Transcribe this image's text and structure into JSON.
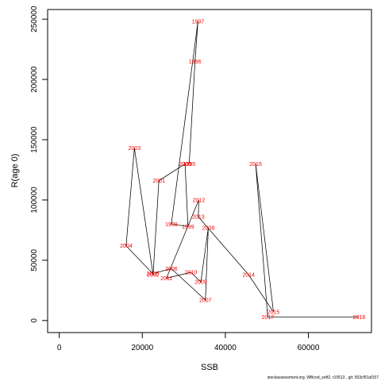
{
  "chart_data": {
    "type": "line",
    "xlabel": "SSB",
    "ylabel": "R(age 0)",
    "xlim": [
      -2800,
      75200
    ],
    "ylim": [
      -10000,
      258000
    ],
    "xticks": [
      0,
      20000,
      40000,
      60000
    ],
    "yticks": [
      0,
      50000,
      100000,
      150000,
      200000,
      250000
    ],
    "line_color": "#000000",
    "label_color": "#ff0000",
    "grid": false,
    "points": [
      {
        "label": "1995",
        "x": 31300,
        "y": 130000
      },
      {
        "label": "1996",
        "x": 32700,
        "y": 215000
      },
      {
        "label": "1997",
        "x": 33400,
        "y": 248000
      },
      {
        "label": "1998",
        "x": 27000,
        "y": 80000
      },
      {
        "label": "1999",
        "x": 31000,
        "y": 78000
      },
      {
        "label": "2000",
        "x": 30300,
        "y": 130000
      },
      {
        "label": "2001",
        "x": 24000,
        "y": 116000
      },
      {
        "label": "2002",
        "x": 22600,
        "y": 38000
      },
      {
        "label": "2003",
        "x": 18100,
        "y": 143000
      },
      {
        "label": "2004",
        "x": 16100,
        "y": 62000
      },
      {
        "label": "2005",
        "x": 22500,
        "y": 39000
      },
      {
        "label": "2006",
        "x": 27000,
        "y": 43000
      },
      {
        "label": "2007",
        "x": 35200,
        "y": 17000
      },
      {
        "label": "2008",
        "x": 35900,
        "y": 77000
      },
      {
        "label": "2009",
        "x": 34100,
        "y": 32000
      },
      {
        "label": "2010",
        "x": 31700,
        "y": 40000
      },
      {
        "label": "2011",
        "x": 25800,
        "y": 35000
      },
      {
        "label": "2012",
        "x": 33600,
        "y": 100000
      },
      {
        "label": "2013",
        "x": 33500,
        "y": 86000
      },
      {
        "label": "2014",
        "x": 45600,
        "y": 38000
      },
      {
        "label": "2015",
        "x": 51600,
        "y": 7000
      },
      {
        "label": "2016",
        "x": 47300,
        "y": 130000
      },
      {
        "label": "2017",
        "x": 50200,
        "y": 3000
      },
      {
        "label": "2018",
        "x": 72200,
        "y": 3000
      }
    ]
  },
  "footnote": "stockassessment.org, WBcod_soft2, r10513 , git: 503cf91af157"
}
